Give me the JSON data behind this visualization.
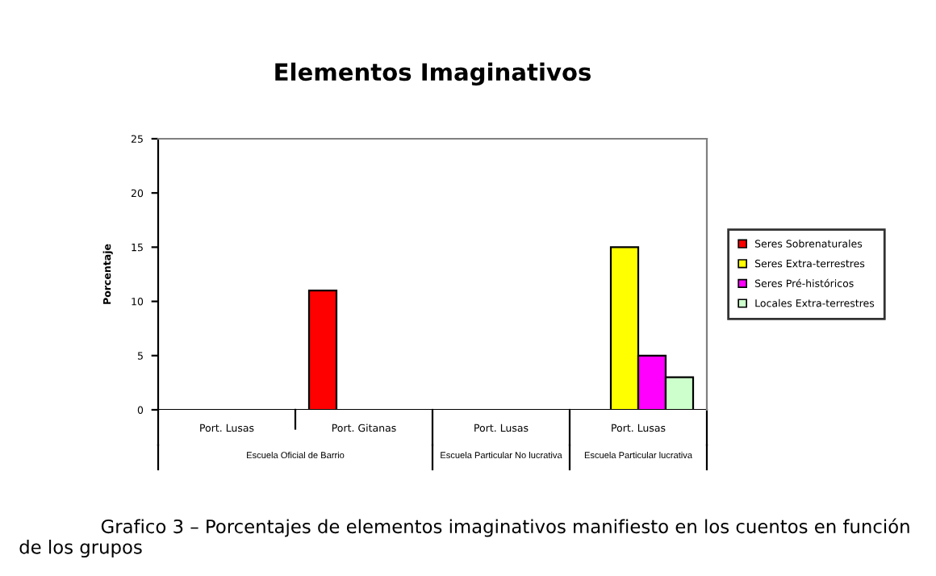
{
  "chart_data": {
    "type": "bar",
    "title": "Elementos Imaginativos",
    "ylabel": "Porcentaje",
    "categories": [
      "Port. Lusas",
      "Port. Gitanas",
      "Port. Lusas",
      "Port. Lusas"
    ],
    "series": [
      {
        "name": "Seres Sobrenaturales",
        "color": "#ff0000",
        "values": [
          null,
          11,
          null,
          null
        ]
      },
      {
        "name": "Seres Extra-terrestres",
        "color": "#ffff00",
        "values": [
          null,
          null,
          null,
          15
        ]
      },
      {
        "name": "Seres Pré-históricos",
        "color": "#ff00ff",
        "values": [
          null,
          null,
          null,
          5
        ]
      },
      {
        "name": "Locales Extra-terrestres",
        "color": "#ccffcc",
        "values": [
          null,
          null,
          null,
          3
        ]
      }
    ],
    "ylim": [
      0,
      25
    ],
    "yticks": [
      0,
      5,
      10,
      15,
      20,
      25
    ],
    "grid": false,
    "legend": "right",
    "annotations": [
      "Escuela Oficial de Barrio",
      "Escuela Particular No lucrativa",
      "Escuela Particular lucrativa",
      "Grafico 3 – Porcentajes de elementos imaginativos manifiesto en los cuentos en función de los grupos"
    ]
  }
}
